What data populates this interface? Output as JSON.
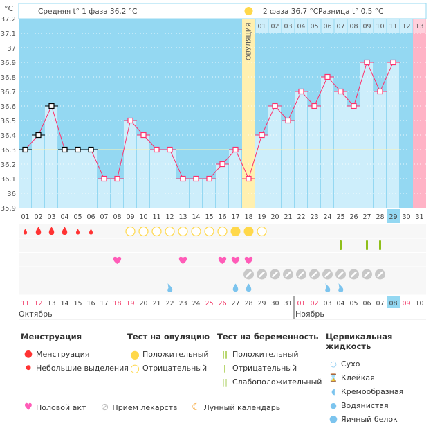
{
  "header": {
    "unit": "°C",
    "phase1": "Средняя t° 1 фаза 36.2 °C",
    "phase2": "2 фаза 36.7 °C",
    "diff": "Разница t° 0.5 °C",
    "ovulation_label": "ОВУЛЯЦИЯ"
  },
  "colors": {
    "bg": "#94d8f2",
    "bar": "#cdeefb",
    "line": "#ff2f6b",
    "ovulation": "#fff0b0",
    "period_next": "#ffb3c6",
    "coverline": "#fff3b0",
    "today": "#94d8f2"
  },
  "chart_data": {
    "type": "line",
    "ylim": [
      35.9,
      37.2
    ],
    "yticks": [
      "37.2",
      "37.1",
      "37",
      "36.9",
      "36.8",
      "36.7",
      "36.6",
      "36.5",
      "36.4",
      "36.3",
      "36.2",
      "36.1",
      "36",
      "35.9"
    ],
    "cycle_days": [
      "01",
      "02",
      "03",
      "04",
      "05",
      "06",
      "07",
      "08",
      "09",
      "10",
      "11",
      "12",
      "13",
      "14",
      "15",
      "16",
      "17",
      "18",
      "19",
      "20",
      "21",
      "22",
      "23",
      "24",
      "25",
      "26",
      "27",
      "28",
      "29",
      "30",
      "31"
    ],
    "temperatures": [
      36.3,
      36.4,
      36.6,
      36.3,
      36.3,
      36.3,
      36.1,
      36.1,
      36.5,
      36.4,
      36.3,
      36.3,
      36.1,
      36.1,
      36.1,
      36.2,
      36.3,
      36.1,
      36.4,
      36.6,
      36.5,
      36.7,
      36.6,
      36.8,
      36.7,
      36.6,
      36.9,
      36.7,
      36.9,
      null,
      null
    ],
    "coverline": 36.3,
    "ovulation_day": 18,
    "post_ovulation_days": [
      "01",
      "02",
      "03",
      "04",
      "05",
      "06",
      "07",
      "08",
      "09",
      "10",
      "11",
      "12",
      "13"
    ],
    "today_day": 29,
    "next_period_day": 31
  },
  "dates": [
    "11",
    "12",
    "13",
    "14",
    "15",
    "16",
    "17",
    "18",
    "19",
    "20",
    "21",
    "22",
    "23",
    "24",
    "25",
    "26",
    "27",
    "28",
    "29",
    "30",
    "31",
    "01",
    "02",
    "03",
    "04",
    "05",
    "06",
    "07",
    "08",
    "09",
    "10"
  ],
  "weekend_dates": [
    1,
    2,
    8,
    9,
    15,
    16,
    22,
    23,
    30
  ],
  "months": {
    "oct": "Октябрь",
    "nov": "Ноябрь"
  },
  "markers": {
    "menstruation": {
      "big": [
        2,
        3,
        4
      ],
      "small": [
        1,
        5,
        6
      ]
    },
    "ovulation_test": {
      "positive": [
        17,
        18
      ],
      "negative": [
        9,
        10,
        11,
        12,
        13,
        14,
        15,
        16,
        19
      ]
    },
    "pregnancy_test": {
      "negative": [
        25,
        27,
        28
      ]
    },
    "sex": [
      8,
      13,
      16,
      17,
      18
    ],
    "medication": [
      18,
      19,
      20,
      21,
      22,
      23,
      24,
      25,
      26,
      27,
      28
    ],
    "cervical": {
      "creamy": [
        12,
        24,
        25
      ],
      "watery": [
        17,
        18
      ]
    }
  },
  "legend": {
    "menstruation": {
      "title": "Менструация",
      "items": [
        "Менструация",
        "Небольшие выделения"
      ]
    },
    "ovulation": {
      "title": "Тест на овуляцию",
      "items": [
        "Положительный",
        "Отрицательный"
      ]
    },
    "pregnancy": {
      "title": "Тест на беременность",
      "items": [
        "Положительный",
        "Отрицательный",
        "Слабоположительный"
      ]
    },
    "cervical": {
      "title": "Цервикальная жидкость",
      "items": [
        "Сухо",
        "Клейкая",
        "Кремообразная",
        "Водянистая",
        "Яичный белок"
      ]
    },
    "other": [
      "Половой акт",
      "Прием лекарств",
      "Лунный календарь"
    ]
  }
}
